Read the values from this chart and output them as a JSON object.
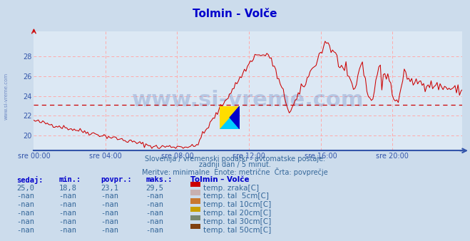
{
  "title": "Tolmin - Volče",
  "title_color": "#0000cc",
  "bg_color": "#ccdcec",
  "plot_bg_color": "#dce8f4",
  "line_color": "#cc0000",
  "avg_line_color": "#cc0000",
  "avg_line_y": 23.1,
  "grid_color": "#ffaaaa",
  "axis_color": "#3355aa",
  "tick_color": "#3355aa",
  "ylim_low": 18.5,
  "ylim_high": 30.5,
  "yticks": [
    20,
    22,
    24,
    26,
    28
  ],
  "xlim_low": 0,
  "xlim_high": 287,
  "xtick_positions": [
    0,
    48,
    96,
    144,
    192,
    240
  ],
  "xtick_labels": [
    "sre 00:00",
    "sre 04:00",
    "sre 08:00",
    "sre 12:00",
    "sre 16:00",
    "sre 20:00"
  ],
  "subtitle1": "Slovenija / vremenski podatki - avtomatske postaje.",
  "subtitle2": "zadnji dan / 5 minut.",
  "subtitle3": "Meritve: minimalne  Enote: metrične  Črta: povprečje",
  "subtitle_color": "#336699",
  "watermark": "www.si-vreme.com",
  "watermark_color": "#3355aa",
  "left_watermark": "www.si-vreme.com",
  "legend_title": "Tolmin – Volče",
  "legend_entries": [
    {
      "label": "temp. zraka[C]",
      "color": "#cc0000"
    },
    {
      "label": "temp. tal  5cm[C]",
      "color": "#c8b0b0"
    },
    {
      "label": "temp. tal 10cm[C]",
      "color": "#c87830"
    },
    {
      "label": "temp. tal 20cm[C]",
      "color": "#c8a000"
    },
    {
      "label": "temp. tal 30cm[C]",
      "color": "#788870"
    },
    {
      "label": "temp. tal 50cm[C]",
      "color": "#804010"
    }
  ],
  "table_headers": [
    "sedaj:",
    "min.:",
    "povpr.:",
    "maks.:"
  ],
  "table_row1": [
    "25,0",
    "18,8",
    "23,1",
    "29,5"
  ],
  "table_nan": "-nan"
}
